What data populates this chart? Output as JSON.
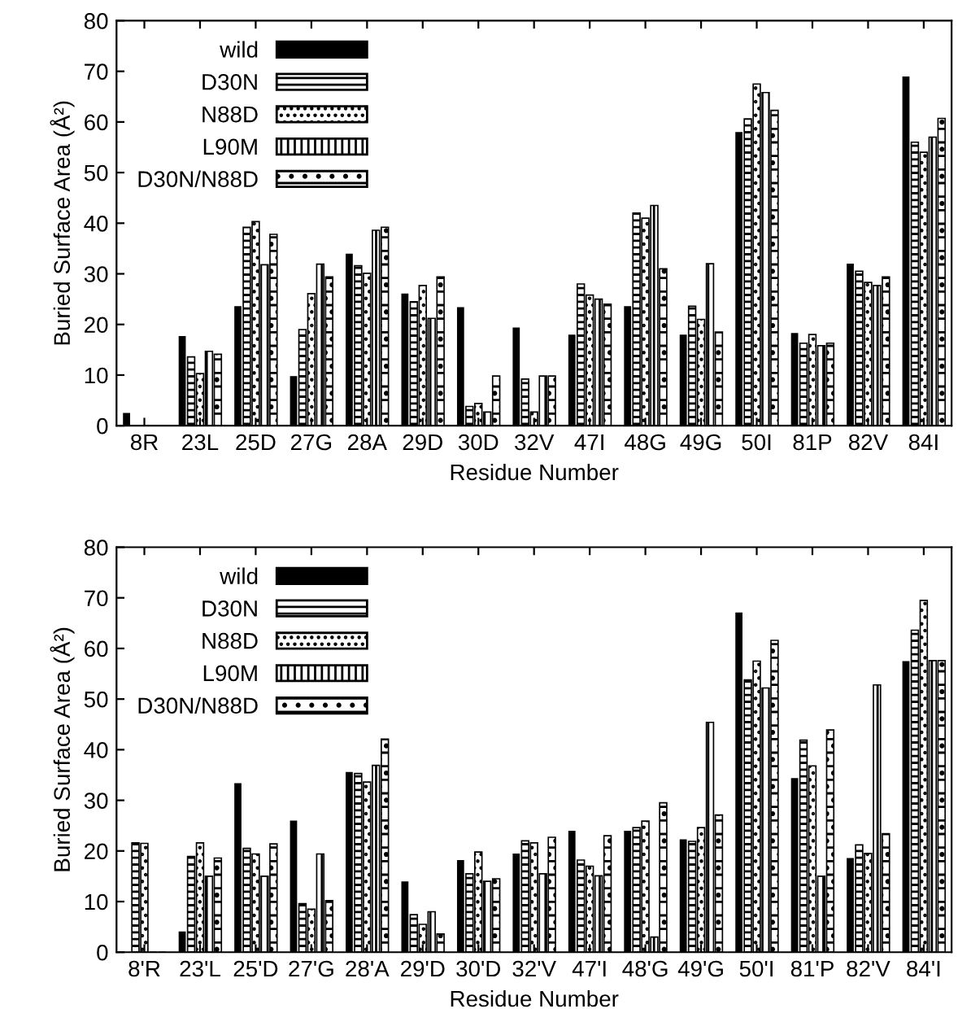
{
  "chart_data": [
    {
      "type": "bar",
      "xlabel": "Residue Number",
      "ylabel": "Buried Surface Area (Å²)",
      "ylim": [
        0,
        80
      ],
      "yticks": [
        0,
        10,
        20,
        30,
        40,
        50,
        60,
        70,
        80
      ],
      "legend": "top left",
      "categories": [
        "8R",
        "23L",
        "25D",
        "27G",
        "28A",
        "29D",
        "30D",
        "32V",
        "47I",
        "48G",
        "49G",
        "50I",
        "81P",
        "82V",
        "84I"
      ],
      "series": [
        {
          "name": "wild",
          "color": "#000000",
          "values": [
            2.5,
            17.7,
            23.6,
            9.8,
            34,
            26.1,
            23.4,
            19.4,
            18,
            23.6,
            18,
            58,
            18.3,
            32,
            69
          ]
        },
        {
          "name": "D30N",
          "color": "#000000",
          "values": [
            0,
            13.6,
            39.2,
            19,
            31.6,
            24.5,
            3.8,
            9.2,
            28,
            42,
            23.6,
            60.6,
            16.3,
            30.5,
            56
          ]
        },
        {
          "name": "N88D",
          "color": "#000000",
          "values": [
            0,
            10.3,
            40.3,
            26.1,
            30.1,
            27.7,
            4.4,
            2.7,
            25.8,
            41,
            21,
            67.5,
            18,
            28.3,
            54
          ]
        },
        {
          "name": "L90M",
          "color": "#000000",
          "values": [
            0,
            14.7,
            31.8,
            31.9,
            38.6,
            21.2,
            2.7,
            9.8,
            25,
            43.5,
            32,
            65.8,
            15.8,
            27.7,
            57
          ]
        },
        {
          "name": "D30N/N88D",
          "color": "#000000",
          "values": [
            0,
            14.1,
            37.8,
            29.4,
            39.2,
            29.4,
            9.8,
            9.8,
            24,
            31,
            18.5,
            62.3,
            16.3,
            29.4,
            60.7
          ]
        }
      ]
    },
    {
      "type": "bar",
      "xlabel": "Residue Number",
      "ylabel": "Buried Surface Area (Å²)",
      "ylim": [
        0,
        80
      ],
      "yticks": [
        0,
        10,
        20,
        30,
        40,
        50,
        60,
        70,
        80
      ],
      "legend": "top left",
      "categories": [
        "8'R",
        "23'L",
        "25'D",
        "27'G",
        "28'A",
        "29'D",
        "30'D",
        "32'V",
        "47'I",
        "48'G",
        "49'G",
        "50'I",
        "81'P",
        "82'V",
        "84'I"
      ],
      "series": [
        {
          "name": "wild",
          "color": "#000000",
          "values": [
            0,
            4.1,
            33.4,
            26,
            35.6,
            14,
            18.2,
            19.5,
            24,
            24,
            22.3,
            67.1,
            34.4,
            18.6,
            57.5
          ]
        },
        {
          "name": "D30N",
          "color": "#000000",
          "values": [
            21.6,
            18.9,
            20.5,
            9.6,
            35.3,
            7.4,
            15.5,
            22,
            18.2,
            24.6,
            21.9,
            53.8,
            41.9,
            21.2,
            63.6
          ]
        },
        {
          "name": "N88D",
          "color": "#000000",
          "values": [
            21.5,
            21.6,
            19.4,
            8.5,
            33.6,
            5.5,
            19.8,
            21.6,
            17,
            25.9,
            24.6,
            57.5,
            36.8,
            19.5,
            69.5
          ]
        },
        {
          "name": "L90M",
          "color": "#000000",
          "values": [
            0,
            15,
            15,
            19.4,
            36.9,
            8,
            14,
            15.5,
            15.1,
            3,
            45.4,
            52.2,
            15,
            52.8,
            57.6
          ]
        },
        {
          "name": "D30N/N88D",
          "color": "#000000",
          "values": [
            0,
            18.6,
            21.4,
            10.2,
            42.1,
            3.6,
            14.5,
            22.7,
            23,
            29.5,
            27.1,
            61.6,
            43.9,
            23.4,
            57.6
          ]
        }
      ]
    }
  ]
}
